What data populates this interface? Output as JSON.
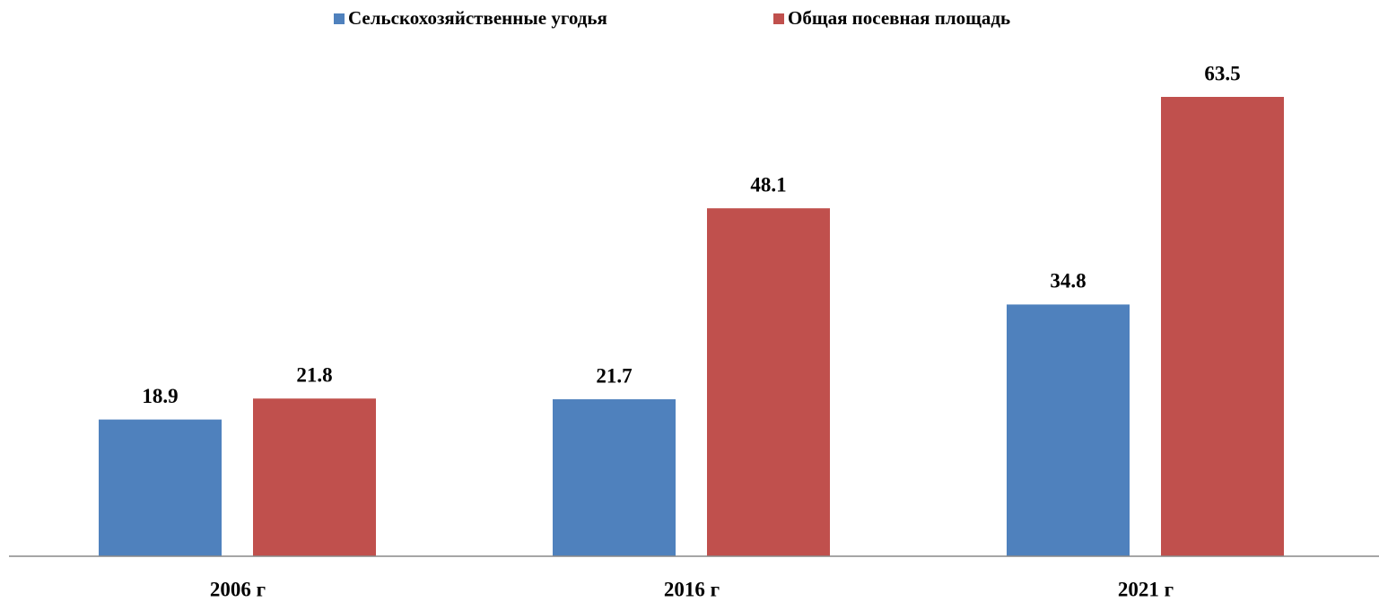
{
  "chart_data": {
    "type": "bar",
    "categories": [
      "2006 г",
      "2016 г",
      "2021 г"
    ],
    "series": [
      {
        "name": "Сельскохозяйственные  угодья",
        "color": "#4f81bd",
        "values": [
          18.9,
          21.7,
          34.8
        ]
      },
      {
        "name": "Общая посевная площадь",
        "color": "#c0504d",
        "values": [
          21.8,
          48.1,
          63.5
        ]
      }
    ],
    "legend": "top"
  }
}
